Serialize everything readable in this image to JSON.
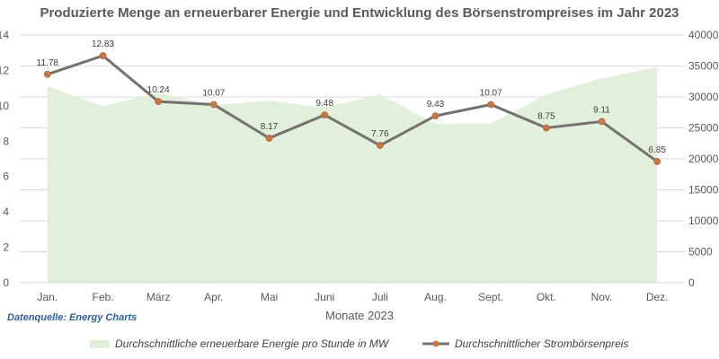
{
  "chart_data": {
    "type": "line+area",
    "title": "Produzierte Menge an erneuerbarer Energie und Entwicklung des Börsenstrompreises im Jahr 2023",
    "xlabel": "Monate 2023",
    "categories": [
      "Jan.",
      "Feb.",
      "März",
      "Apr.",
      "Mai",
      "Juni",
      "Juli",
      "Aug.",
      "Sept.",
      "Okt.",
      "Nov.",
      "Dez."
    ],
    "left_axis": {
      "ylim": [
        0,
        14
      ],
      "ticks": [
        "0",
        "2",
        "4",
        "6",
        "8",
        "10",
        "12",
        "14"
      ]
    },
    "right_axis": {
      "ylim": [
        0,
        40000
      ],
      "ticks": [
        "0",
        "5000",
        "10000",
        "15000",
        "20000",
        "25000",
        "30000",
        "35000",
        "40000"
      ]
    },
    "grid": true,
    "legend_position": "bottom",
    "series": [
      {
        "name": "Durchschnittliche erneuerbare Energie pro Stunde in MW",
        "type": "area",
        "axis": "right",
        "color": "#e2efda",
        "values": [
          31700,
          28500,
          30700,
          28700,
          29400,
          28300,
          30400,
          25700,
          25700,
          30400,
          33000,
          34800
        ]
      },
      {
        "name": "Durchschnittlicher Strombörsenpreis",
        "type": "line",
        "axis": "left",
        "color": "#767171",
        "marker_color": "#c87941",
        "values": [
          11.78,
          12.83,
          10.24,
          10.07,
          8.17,
          9.48,
          7.76,
          9.43,
          10.07,
          8.75,
          9.11,
          6.85
        ],
        "labels": [
          "11.78",
          "12.83",
          "10.24",
          "10.07",
          "8.17",
          "9.48",
          "7.76",
          "9.43",
          "10.07",
          "8.75",
          "9.11",
          "6.85"
        ]
      }
    ]
  },
  "source": "Datenquelle: Energy Charts"
}
